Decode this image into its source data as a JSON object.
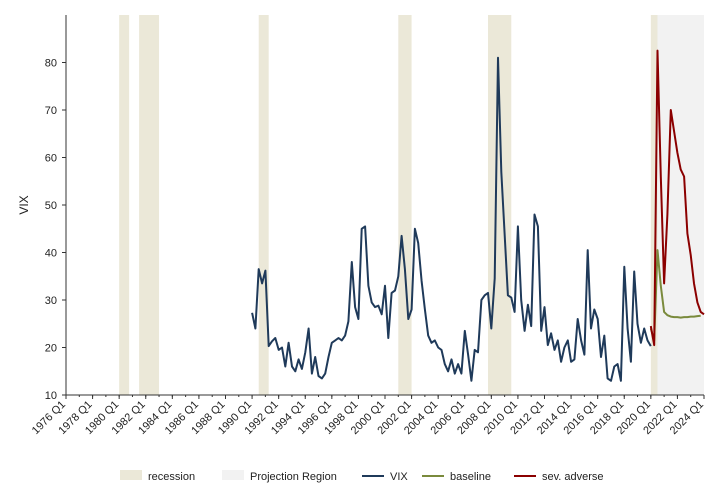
{
  "chart_data": {
    "type": "line",
    "title": "",
    "xlabel": "",
    "ylabel": "VIX",
    "ylim": [
      10,
      90
    ],
    "xlim": [
      "1976 Q1",
      "2024 Q1"
    ],
    "grid": false,
    "legend_position": "bottom",
    "y_ticks": [
      10,
      20,
      30,
      40,
      50,
      60,
      70,
      80
    ],
    "x_tick_labels": [
      "1976 Q1",
      "1978 Q1",
      "1980 Q1",
      "1982 Q1",
      "1984 Q1",
      "1986 Q1",
      "1988 Q1",
      "1990 Q1",
      "1992 Q1",
      "1994 Q1",
      "1996 Q1",
      "1998 Q1",
      "2000 Q1",
      "2002 Q1",
      "2004 Q1",
      "2006 Q1",
      "2008 Q1",
      "2010 Q1",
      "2012 Q1",
      "2014 Q1",
      "2016 Q1",
      "2018 Q1",
      "2020 Q1",
      "2022 Q1",
      "2024 Q1"
    ],
    "legend": [
      {
        "name": "recession",
        "kind": "band",
        "color": "#ebe8d8"
      },
      {
        "name": "Projection Region",
        "kind": "band",
        "color": "#f2f2f2"
      },
      {
        "name": "VIX",
        "kind": "line",
        "color": "#1f3a5a"
      },
      {
        "name": "baseline",
        "kind": "line",
        "color": "#7a8a3c"
      },
      {
        "name": "sev. adverse",
        "kind": "line",
        "color": "#8b0000"
      }
    ],
    "recessions": [
      {
        "start": "1980 Q1",
        "end": "1980 Q3"
      },
      {
        "start": "1981 Q3",
        "end": "1982 Q4"
      },
      {
        "start": "1990 Q3",
        "end": "1991 Q1"
      },
      {
        "start": "2001 Q1",
        "end": "2001 Q4"
      },
      {
        "start": "2007 Q4",
        "end": "2009 Q2"
      },
      {
        "start": "2020 Q1",
        "end": "2020 Q2"
      }
    ],
    "projection_region": {
      "start": "2020 Q3",
      "end": "2024 Q1"
    },
    "series": [
      {
        "name": "VIX",
        "color": "#1f3a5a",
        "start": "1990 Q1",
        "values": [
          27.3,
          24.0,
          36.5,
          33.5,
          36.2,
          20.3,
          21.3,
          22.0,
          19.5,
          20.0,
          16.0,
          21.0,
          16.0,
          15.0,
          17.5,
          15.5,
          19.0,
          24.0,
          14.5,
          18.0,
          14.0,
          13.5,
          14.5,
          18.0,
          21.0,
          21.5,
          22.0,
          21.5,
          22.5,
          25.5,
          38.0,
          28.5,
          26.0,
          45.0,
          45.5,
          33.0,
          29.5,
          28.5,
          28.8,
          27.0,
          33.0,
          22.0,
          31.5,
          32.0,
          35.0,
          43.5,
          36.5,
          26.0,
          28.0,
          45.0,
          42.0,
          34.0,
          28.0,
          22.5,
          21.0,
          21.5,
          20.0,
          19.5,
          16.5,
          15.0,
          17.5,
          14.5,
          16.5,
          14.5,
          23.5,
          18.5,
          13.0,
          19.5,
          19.0,
          30.0,
          31.0,
          31.5,
          24.0,
          34.5,
          81.0,
          57.0,
          44.0,
          31.0,
          30.5,
          27.5,
          45.5,
          30.0,
          23.5,
          29.0,
          24.5,
          48.0,
          45.5,
          23.5,
          28.5,
          20.5,
          23.0,
          19.5,
          21.5,
          17.0,
          20.0,
          21.5,
          17.0,
          17.5,
          26.0,
          21.5,
          18.5,
          40.5,
          24.0,
          28.0,
          26.0,
          18.0,
          22.5,
          13.5,
          13.0,
          16.0,
          16.5,
          13.0,
          37.0,
          24.0,
          17.0,
          36.0,
          25.0,
          21.0,
          24.0,
          21.5,
          20.3
        ]
      },
      {
        "name": "baseline",
        "color": "#7a8a3c",
        "start": "2020 Q1",
        "values": [
          24.0,
          21.5,
          40.5,
          33.0,
          27.5,
          26.8,
          26.5,
          26.4,
          26.4,
          26.3,
          26.4,
          26.4,
          26.5,
          26.5,
          26.6,
          26.7
        ]
      },
      {
        "name": "sev. adverse",
        "color": "#8b0000",
        "start": "2020 Q1",
        "values": [
          24.5,
          20.5,
          82.5,
          56.0,
          33.5,
          48.0,
          70.0,
          65.5,
          61.0,
          57.5,
          56.0,
          44.0,
          39.5,
          33.5,
          29.5,
          27.5,
          27.0
        ]
      }
    ]
  }
}
